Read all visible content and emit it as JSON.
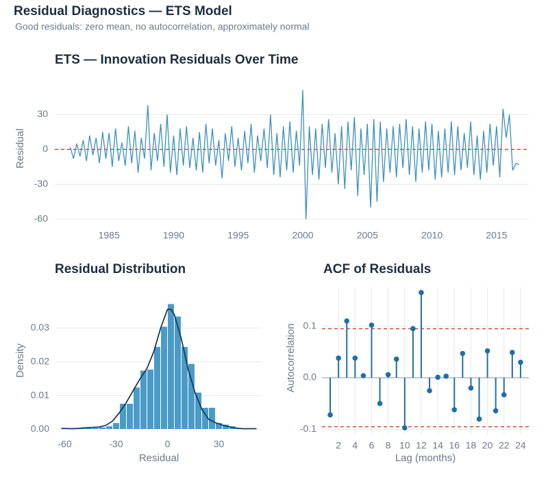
{
  "title": "Residual Diagnostics — ETS Model",
  "subtitle": "Good residuals: zero mean, no autocorrelation, approximately normal",
  "chart_data": [
    {
      "type": "line",
      "title": "ETS — Innovation Residuals Over Time",
      "ylabel": "Residual",
      "color": "#3a8fbf",
      "hline": 0,
      "hline_color": "#d9453b",
      "x": [
        1982,
        1982.25,
        1982.5,
        1982.75,
        1983,
        1983.25,
        1983.5,
        1983.75,
        1984,
        1984.25,
        1984.5,
        1984.75,
        1985,
        1985.25,
        1985.5,
        1985.75,
        1986,
        1986.25,
        1986.5,
        1986.75,
        1987,
        1987.25,
        1987.5,
        1987.75,
        1988,
        1988.25,
        1988.5,
        1988.75,
        1989,
        1989.25,
        1989.5,
        1989.75,
        1990,
        1990.25,
        1990.5,
        1990.75,
        1991,
        1991.25,
        1991.5,
        1991.75,
        1992,
        1992.25,
        1992.5,
        1992.75,
        1993,
        1993.25,
        1993.5,
        1993.75,
        1994,
        1994.25,
        1994.5,
        1994.75,
        1995,
        1995.25,
        1995.5,
        1995.75,
        1996,
        1996.25,
        1996.5,
        1996.75,
        1997,
        1997.25,
        1997.5,
        1997.75,
        1998,
        1998.25,
        1998.5,
        1998.75,
        1999,
        1999.25,
        1999.5,
        1999.75,
        2000,
        2000.25,
        2000.5,
        2000.75,
        2001,
        2001.25,
        2001.5,
        2001.75,
        2002,
        2002.25,
        2002.5,
        2002.75,
        2003,
        2003.25,
        2003.5,
        2003.75,
        2004,
        2004.25,
        2004.5,
        2004.75,
        2005,
        2005.25,
        2005.5,
        2005.75,
        2006,
        2006.25,
        2006.5,
        2006.75,
        2007,
        2007.25,
        2007.5,
        2007.75,
        2008,
        2008.25,
        2008.5,
        2008.75,
        2009,
        2009.25,
        2009.5,
        2009.75,
        2010,
        2010.25,
        2010.5,
        2010.75,
        2011,
        2011.25,
        2011.5,
        2011.75,
        2012,
        2012.25,
        2012.5,
        2012.75,
        2013,
        2013.25,
        2013.5,
        2013.75,
        2014,
        2014.25,
        2014.5,
        2014.75,
        2015,
        2015.25,
        2015.5,
        2015.75,
        2016,
        2016.25,
        2016.5,
        2016.75
      ],
      "values": [
        2,
        -8,
        5,
        -6,
        8,
        -10,
        12,
        -5,
        10,
        -12,
        15,
        -8,
        14,
        -15,
        18,
        -10,
        6,
        -14,
        20,
        -12,
        16,
        -20,
        10,
        -8,
        38,
        -18,
        14,
        -10,
        22,
        -15,
        30,
        -20,
        12,
        -22,
        18,
        -14,
        20,
        -16,
        10,
        -18,
        15,
        -20,
        22,
        -12,
        18,
        -14,
        8,
        -25,
        14,
        -10,
        20,
        -15,
        10,
        -18,
        16,
        -12,
        22,
        -20,
        12,
        -10,
        18,
        -16,
        30,
        -22,
        14,
        -24,
        20,
        -18,
        24,
        -20,
        16,
        -14,
        51,
        -60,
        20,
        -22,
        18,
        -26,
        22,
        -16,
        26,
        -20,
        14,
        -30,
        20,
        -34,
        24,
        -18,
        28,
        -40,
        18,
        -22,
        22,
        -50,
        26,
        -45,
        24,
        -28,
        18,
        -20,
        20,
        -24,
        22,
        -16,
        26,
        -22,
        20,
        -28,
        18,
        -20,
        24,
        -18,
        22,
        -26,
        16,
        -24,
        18,
        -20,
        24,
        -22,
        20,
        -18,
        14,
        -16,
        24,
        -22,
        12,
        -26,
        16,
        -20,
        22,
        -14,
        20,
        -24,
        35,
        10,
        30,
        -18,
        -12,
        -13
      ],
      "xlim": [
        1980.8,
        2017.5
      ],
      "ylim": [
        -61,
        52
      ],
      "xticks": [
        1985,
        1990,
        1995,
        2000,
        2005,
        2010,
        2015
      ],
      "yticks": [
        -60,
        -30,
        0,
        30
      ],
      "grid": true
    },
    {
      "type": "histogram",
      "title": "Residual Distribution",
      "xlabel": "Residual",
      "ylabel": "Density",
      "color": "#4a9bc7",
      "curve_color": "#1a3a5c",
      "bins": [
        -60,
        -56,
        -52,
        -48,
        -44,
        -40,
        -36,
        -32,
        -28,
        -24,
        -20,
        -16,
        -12,
        -8,
        -4,
        0,
        4,
        8,
        12,
        16,
        20,
        24,
        28,
        32,
        36,
        40,
        44,
        48,
        52
      ],
      "values": [
        0.0005,
        0,
        0.0005,
        0.0005,
        0.0005,
        0.0007,
        0.001,
        0.002,
        0.0077,
        0.0077,
        0.0125,
        0.0175,
        0.0178,
        0.0245,
        0.0305,
        0.0372,
        0.0335,
        0.0245,
        0.0195,
        0.011,
        0.0065,
        0.0065,
        0.002,
        0.0015,
        0.001,
        0.0005,
        0.0003,
        0.0005
      ],
      "curve": {
        "x": [
          -62,
          -56,
          -52,
          -48,
          -44,
          -40,
          -36,
          -32,
          -28,
          -24,
          -20,
          -16,
          -12,
          -8,
          -4,
          0,
          2,
          4,
          8,
          12,
          16,
          20,
          24,
          28,
          32,
          36,
          40,
          44,
          48,
          52
        ],
        "values": [
          0.0003,
          0.0002,
          0.0003,
          0.0005,
          0.0006,
          0.0007,
          0.0012,
          0.0025,
          0.005,
          0.008,
          0.0115,
          0.015,
          0.018,
          0.023,
          0.03,
          0.0355,
          0.0355,
          0.034,
          0.027,
          0.018,
          0.011,
          0.006,
          0.003,
          0.002,
          0.0013,
          0.0008,
          0.0004,
          0.0002,
          0.0002,
          0.0002
        ]
      },
      "xlim": [
        -65,
        55
      ],
      "ylim": [
        -0.0005,
        0.04
      ],
      "xticks": [
        -60,
        -30,
        0,
        30
      ],
      "yticks": [
        {
          "value": 0,
          "label": "0.00"
        },
        {
          "value": 0.01,
          "label": "0.01"
        },
        {
          "value": 0.02,
          "label": "0.02"
        },
        {
          "value": 0.03,
          "label": "0.03"
        }
      ],
      "grid": true
    },
    {
      "type": "stem",
      "title": "ACF of Residuals",
      "xlabel": "Lag (months)",
      "ylabel": "Autocorrelation",
      "color": "#1d6fa5",
      "bounds": [
        -0.095,
        0.095
      ],
      "bounds_color": "#d9453b",
      "x": [
        1,
        2,
        3,
        4,
        5,
        6,
        7,
        8,
        9,
        10,
        11,
        12,
        13,
        14,
        15,
        16,
        17,
        18,
        19,
        20,
        21,
        22,
        23,
        24
      ],
      "values": [
        -0.072,
        0.038,
        0.11,
        0.038,
        0.004,
        0.102,
        -0.05,
        0.006,
        0.036,
        -0.097,
        0.095,
        0.165,
        -0.025,
        0.001,
        0.003,
        -0.062,
        0.047,
        -0.02,
        -0.08,
        0.052,
        -0.064,
        -0.033,
        0.049,
        0.03
      ],
      "xlim": [
        0,
        25
      ],
      "ylim": [
        -0.11,
        0.175
      ],
      "xticks": [
        2,
        4,
        6,
        8,
        10,
        12,
        14,
        16,
        18,
        20,
        22,
        24
      ],
      "yticks": [
        -0.1,
        {
          "value": 0,
          "label": "0.0"
        },
        0.1
      ],
      "grid": true
    }
  ]
}
